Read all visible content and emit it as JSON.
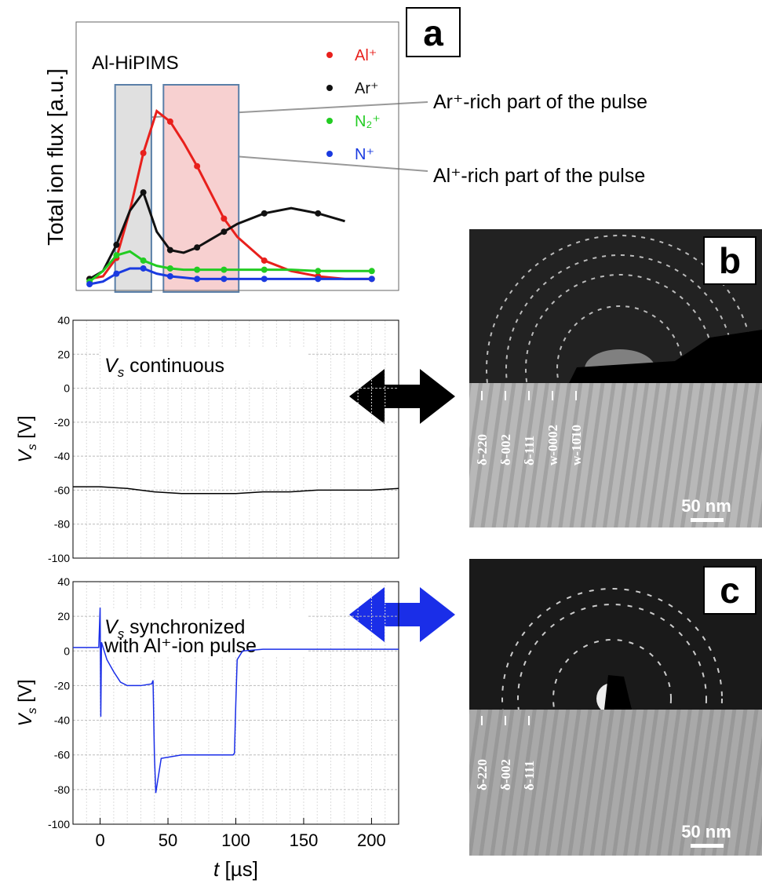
{
  "chart_data": [
    {
      "type": "line",
      "label": "a",
      "title": "Al-HiPIMS",
      "ylabel": "Total ion flux [a.u.]",
      "xlim": [
        -20,
        220
      ],
      "ylim": [
        0,
        10
      ],
      "regions": [
        {
          "xlim": [
            9,
            36
          ],
          "color": "#e0e0e0"
        },
        {
          "xlim": [
            45,
            101
          ],
          "color": "#f7d0d0"
        }
      ],
      "x": [
        -10,
        0,
        10,
        20,
        30,
        40,
        50,
        60,
        70,
        80,
        90,
        100,
        120,
        140,
        160,
        180,
        200
      ],
      "series": [
        {
          "name": "Al⁺",
          "color": "#e8201c",
          "values": [
            0.2,
            0.3,
            1.0,
            2.8,
            5.0,
            6.6,
            6.2,
            5.4,
            4.5,
            3.5,
            2.5,
            1.8,
            0.9,
            0.5,
            0.3,
            0.2,
            0.2
          ]
        },
        {
          "name": "Ar⁺",
          "color": "#111111",
          "values": [
            0.2,
            0.5,
            1.5,
            2.8,
            3.5,
            2.0,
            1.3,
            1.2,
            1.4,
            1.7,
            2.0,
            2.3,
            2.7,
            2.9,
            2.7,
            2.4,
            null
          ]
        },
        {
          "name": "N₂⁺",
          "color": "#22cc22",
          "values": [
            0.1,
            0.5,
            1.1,
            1.25,
            0.9,
            0.7,
            0.6,
            0.55,
            0.55,
            0.55,
            0.55,
            0.55,
            0.55,
            0.55,
            0.5,
            0.5,
            0.5
          ]
        },
        {
          "name": "N⁺",
          "color": "#1a3ae0",
          "values": [
            0,
            0.1,
            0.4,
            0.6,
            0.6,
            0.4,
            0.3,
            0.25,
            0.2,
            0.2,
            0.2,
            0.2,
            0.2,
            0.2,
            0.2,
            0.2,
            0.2
          ]
        }
      ],
      "annotations": [
        "Ar⁺-rich part of the pulse",
        "Al⁺-rich part of the pulse"
      ]
    },
    {
      "type": "line",
      "annotation": {
        "symbol": "V",
        "subscript": "s",
        "text": " continuous"
      },
      "ylabel": {
        "symbol": "V",
        "subscript": "s",
        "unit": " [V]"
      },
      "xlim": [
        -20,
        220
      ],
      "ylim": [
        -100,
        40
      ],
      "yticks": [
        -100,
        -80,
        -60,
        -40,
        -20,
        0,
        20,
        40
      ],
      "grid": true,
      "x": [
        -20,
        0,
        20,
        40,
        60,
        80,
        100,
        120,
        140,
        160,
        180,
        200,
        220
      ],
      "series": [
        {
          "color": "#000000",
          "values": [
            -58,
            -58,
            -59,
            -61,
            -62,
            -62,
            -62,
            -61,
            -61,
            -60,
            -60,
            -60,
            -59
          ]
        }
      ]
    },
    {
      "type": "line",
      "annotation": {
        "symbol": "V",
        "subscript": "s",
        "text": " synchronized",
        "text2": "with Al⁺-ion pulse"
      },
      "ylabel": {
        "symbol": "V",
        "subscript": "s",
        "unit": " [V]"
      },
      "xlabel": {
        "symbol": "t",
        "unit": " [µs]"
      },
      "xlim": [
        -20,
        220
      ],
      "ylim": [
        -100,
        40
      ],
      "yticks": [
        -100,
        -80,
        -60,
        -40,
        -20,
        0,
        20,
        40
      ],
      "xticks": [
        0,
        50,
        100,
        150,
        200
      ],
      "grid": true,
      "x": [
        -20,
        -1,
        0,
        0.5,
        1,
        5,
        10,
        15,
        20,
        30,
        38,
        39,
        40,
        41,
        45,
        60,
        80,
        98,
        99,
        100,
        101,
        105,
        120,
        150,
        180,
        200,
        220
      ],
      "series": [
        {
          "color": "#1a2ee8",
          "values": [
            2,
            2,
            25,
            -38,
            5,
            -5,
            -12,
            -18,
            -20,
            -20,
            -19,
            -17,
            -60,
            -82,
            -62,
            -60,
            -60,
            -60,
            -59,
            -30,
            -5,
            0,
            1,
            1,
            1,
            1,
            1
          ]
        }
      ]
    }
  ],
  "micrographs": [
    {
      "label": "b",
      "rings": [
        "δ-220",
        "δ-002",
        "δ-111",
        "w-0002",
        "w-10̄10"
      ],
      "scale": "50 nm"
    },
    {
      "label": "c",
      "rings": [
        "δ-220",
        "δ-002",
        "δ-111"
      ],
      "scale": "50 nm"
    }
  ]
}
